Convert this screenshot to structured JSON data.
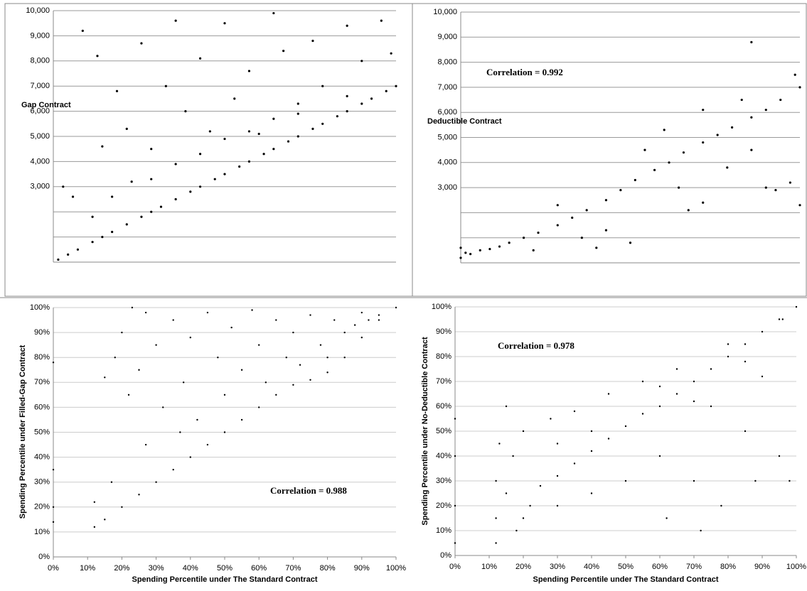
{
  "chart_data": [
    {
      "type": "scatter",
      "ylabel": "Gap Contract",
      "color": "#000000",
      "grid": true,
      "xlim": [
        0,
        7000
      ],
      "ylim": [
        0,
        10000
      ],
      "yticks": [
        {
          "value": 1000,
          "label": null
        },
        {
          "value": 2000,
          "label": null
        },
        {
          "value": 3000,
          "label": "3,000"
        },
        {
          "value": 4000,
          "label": "4,000"
        },
        {
          "value": 5000,
          "label": "5,000"
        },
        {
          "value": 6000,
          "label": "6,000"
        },
        {
          "value": 7000,
          "label": "7,000"
        },
        {
          "value": 8000,
          "label": "8,000"
        },
        {
          "value": 9000,
          "label": "9,000"
        },
        {
          "value": 10000,
          "label": "10,000"
        }
      ],
      "x": [
        100,
        300,
        500,
        800,
        1000,
        1200,
        1500,
        1800,
        2000,
        2200,
        2500,
        2800,
        3000,
        3300,
        3500,
        3800,
        4000,
        4300,
        4500,
        4800,
        5000,
        5300,
        5500,
        5800,
        6000,
        6300,
        6500,
        6800,
        7000,
        200,
        400,
        600,
        900,
        1000,
        1300,
        1500,
        1800,
        2000,
        2300,
        2500,
        2700,
        3000,
        3200,
        3500,
        3700,
        4000,
        4200,
        4500,
        4700,
        5000,
        5300,
        5500,
        6000,
        6300,
        6700,
        6900,
        1200,
        2000,
        3000,
        4000,
        5000,
        6000,
        800,
        1600,
        2500,
        3500,
        4500
      ],
      "values": [
        100,
        300,
        500,
        800,
        1000,
        1200,
        1500,
        1800,
        2000,
        2200,
        2500,
        2800,
        3000,
        3300,
        3500,
        3800,
        4000,
        4300,
        4500,
        4800,
        5000,
        5300,
        5500,
        5800,
        6000,
        6300,
        6500,
        6800,
        7000,
        3000,
        2600,
        9200,
        8200,
        4600,
        6800,
        5300,
        8700,
        4500,
        7000,
        9600,
        6000,
        8100,
        5200,
        9500,
        6500,
        7600,
        5100,
        9900,
        8400,
        6300,
        8800,
        7000,
        9400,
        8000,
        9600,
        8300,
        2600,
        3300,
        4300,
        5200,
        5900,
        6600,
        1800,
        3200,
        3900,
        4900,
        5700
      ]
    },
    {
      "type": "scatter",
      "ylabel": "Deductible Contract",
      "annotation": "Correlation = 0.992",
      "color": "#000000",
      "grid": true,
      "xlim": [
        0,
        7000
      ],
      "ylim": [
        0,
        10000
      ],
      "yticks": [
        {
          "value": 1000,
          "label": null
        },
        {
          "value": 2000,
          "label": null
        },
        {
          "value": 3000,
          "label": "3,000"
        },
        {
          "value": 4000,
          "label": "4,000"
        },
        {
          "value": 5000,
          "label": "5,000"
        },
        {
          "value": 6000,
          "label": "6,000"
        },
        {
          "value": 7000,
          "label": "7,000"
        },
        {
          "value": 8000,
          "label": "8,000"
        },
        {
          "value": 9000,
          "label": "9,000"
        },
        {
          "value": 10000,
          "label": "10,000"
        }
      ],
      "x": [
        0,
        0,
        100,
        200,
        400,
        600,
        800,
        1000,
        1300,
        1600,
        2000,
        2300,
        2600,
        3000,
        3300,
        3600,
        4000,
        4300,
        4600,
        5000,
        5300,
        5600,
        6000,
        6300,
        6600,
        7000,
        2000,
        2500,
        3000,
        3500,
        4500,
        5000,
        5500,
        6000,
        6300,
        6800,
        5800,
        4200,
        3800,
        6000,
        6900,
        7000,
        1500,
        2800,
        5000,
        4700,
        6500
      ],
      "values": [
        200,
        600,
        400,
        350,
        500,
        550,
        650,
        800,
        1000,
        1200,
        1500,
        1800,
        2100,
        2500,
        2900,
        3300,
        3700,
        4000,
        4400,
        4800,
        5100,
        5400,
        5800,
        6100,
        6500,
        7000,
        2300,
        1000,
        1300,
        800,
        3000,
        2400,
        3800,
        4500,
        3000,
        3200,
        6500,
        5300,
        4500,
        8800,
        7500,
        2300,
        500,
        600,
        6100,
        2100,
        2900
      ]
    },
    {
      "type": "scatter",
      "xlabel": "Spending Percentile under The Standard Contract",
      "ylabel": "Spending Percentile under Filled-Gap Contract",
      "annotation": "Correlation  = 0.988",
      "color": "#000000",
      "grid": true,
      "xlim": [
        0,
        100
      ],
      "ylim": [
        0,
        100
      ],
      "xticks": [
        {
          "value": 0,
          "label": "0%"
        },
        {
          "value": 10,
          "label": "10%"
        },
        {
          "value": 20,
          "label": "20%"
        },
        {
          "value": 30,
          "label": "30%"
        },
        {
          "value": 40,
          "label": "40%"
        },
        {
          "value": 50,
          "label": "50%"
        },
        {
          "value": 60,
          "label": "60%"
        },
        {
          "value": 70,
          "label": "70%"
        },
        {
          "value": 80,
          "label": "80%"
        },
        {
          "value": 90,
          "label": "90%"
        },
        {
          "value": 100,
          "label": "100%"
        }
      ],
      "yticks": [
        {
          "value": 0,
          "label": "0%"
        },
        {
          "value": 10,
          "label": "10%"
        },
        {
          "value": 20,
          "label": "20%"
        },
        {
          "value": 30,
          "label": "30%"
        },
        {
          "value": 40,
          "label": "40%"
        },
        {
          "value": 50,
          "label": "50%"
        },
        {
          "value": 60,
          "label": "60%"
        },
        {
          "value": 70,
          "label": "70%"
        },
        {
          "value": 80,
          "label": "80%"
        },
        {
          "value": 90,
          "label": "90%"
        },
        {
          "value": 100,
          "label": "100%"
        }
      ],
      "x": [
        12,
        15,
        20,
        25,
        30,
        35,
        40,
        45,
        50,
        55,
        60,
        65,
        70,
        75,
        80,
        85,
        90,
        95,
        100,
        0,
        0,
        0,
        0,
        12,
        15,
        18,
        20,
        22,
        23,
        25,
        27,
        30,
        32,
        35,
        38,
        40,
        42,
        45,
        48,
        50,
        52,
        55,
        58,
        60,
        62,
        65,
        68,
        70,
        72,
        75,
        78,
        80,
        82,
        85,
        88,
        90,
        92,
        95,
        17,
        27,
        37
      ],
      "values": [
        12,
        15,
        20,
        25,
        30,
        35,
        40,
        45,
        50,
        55,
        60,
        65,
        69,
        71,
        74,
        80,
        88,
        95,
        100,
        78,
        35,
        20,
        14,
        22,
        72,
        80,
        90,
        65,
        100,
        75,
        98,
        85,
        60,
        95,
        70,
        88,
        55,
        98,
        80,
        65,
        92,
        75,
        99,
        85,
        70,
        95,
        80,
        90,
        77,
        97,
        85,
        80,
        95,
        90,
        93,
        98,
        95,
        97,
        30,
        45,
        50
      ]
    },
    {
      "type": "scatter",
      "xlabel": "Spending Percentile under The Standard Contract",
      "ylabel": "Spending Percentile  under No-Deductible Contract",
      "annotation": "Correlation  = 0.978",
      "color": "#000000",
      "grid": true,
      "xlim": [
        0,
        100
      ],
      "ylim": [
        0,
        100
      ],
      "xticks": [
        {
          "value": 0,
          "label": "0%"
        },
        {
          "value": 10,
          "label": "10%"
        },
        {
          "value": 20,
          "label": "20%"
        },
        {
          "value": 30,
          "label": "30%"
        },
        {
          "value": 40,
          "label": "40%"
        },
        {
          "value": 50,
          "label": "50%"
        },
        {
          "value": 60,
          "label": "60%"
        },
        {
          "value": 70,
          "label": "70%"
        },
        {
          "value": 80,
          "label": "80%"
        },
        {
          "value": 90,
          "label": "90%"
        },
        {
          "value": 100,
          "label": "100%"
        }
      ],
      "yticks": [
        {
          "value": 0,
          "label": "0%"
        },
        {
          "value": 10,
          "label": "10%"
        },
        {
          "value": 20,
          "label": "20%"
        },
        {
          "value": 30,
          "label": "30%"
        },
        {
          "value": 40,
          "label": "40%"
        },
        {
          "value": 50,
          "label": "50%"
        },
        {
          "value": 60,
          "label": "60%"
        },
        {
          "value": 70,
          "label": "70%"
        },
        {
          "value": 80,
          "label": "80%"
        },
        {
          "value": 90,
          "label": "90%"
        },
        {
          "value": 100,
          "label": "100%"
        }
      ],
      "x": [
        0,
        0,
        0,
        0,
        12,
        12,
        12,
        13,
        15,
        17,
        18,
        20,
        22,
        25,
        30,
        35,
        40,
        45,
        50,
        55,
        60,
        65,
        70,
        75,
        80,
        85,
        90,
        95,
        100,
        15,
        20,
        28,
        30,
        35,
        40,
        45,
        50,
        55,
        60,
        62,
        65,
        70,
        72,
        75,
        78,
        80,
        85,
        88,
        90,
        95,
        98,
        96,
        30,
        40,
        60,
        70,
        85
      ],
      "values": [
        5,
        20,
        40,
        55,
        5,
        15,
        30,
        45,
        25,
        40,
        10,
        15,
        20,
        28,
        32,
        37,
        42,
        47,
        52,
        57,
        60,
        65,
        70,
        75,
        80,
        85,
        90,
        95,
        100,
        60,
        50,
        55,
        20,
        58,
        25,
        65,
        30,
        70,
        40,
        15,
        75,
        30,
        10,
        60,
        20,
        85,
        50,
        30,
        72,
        40,
        30,
        95,
        45,
        50,
        68,
        62,
        78
      ]
    }
  ]
}
